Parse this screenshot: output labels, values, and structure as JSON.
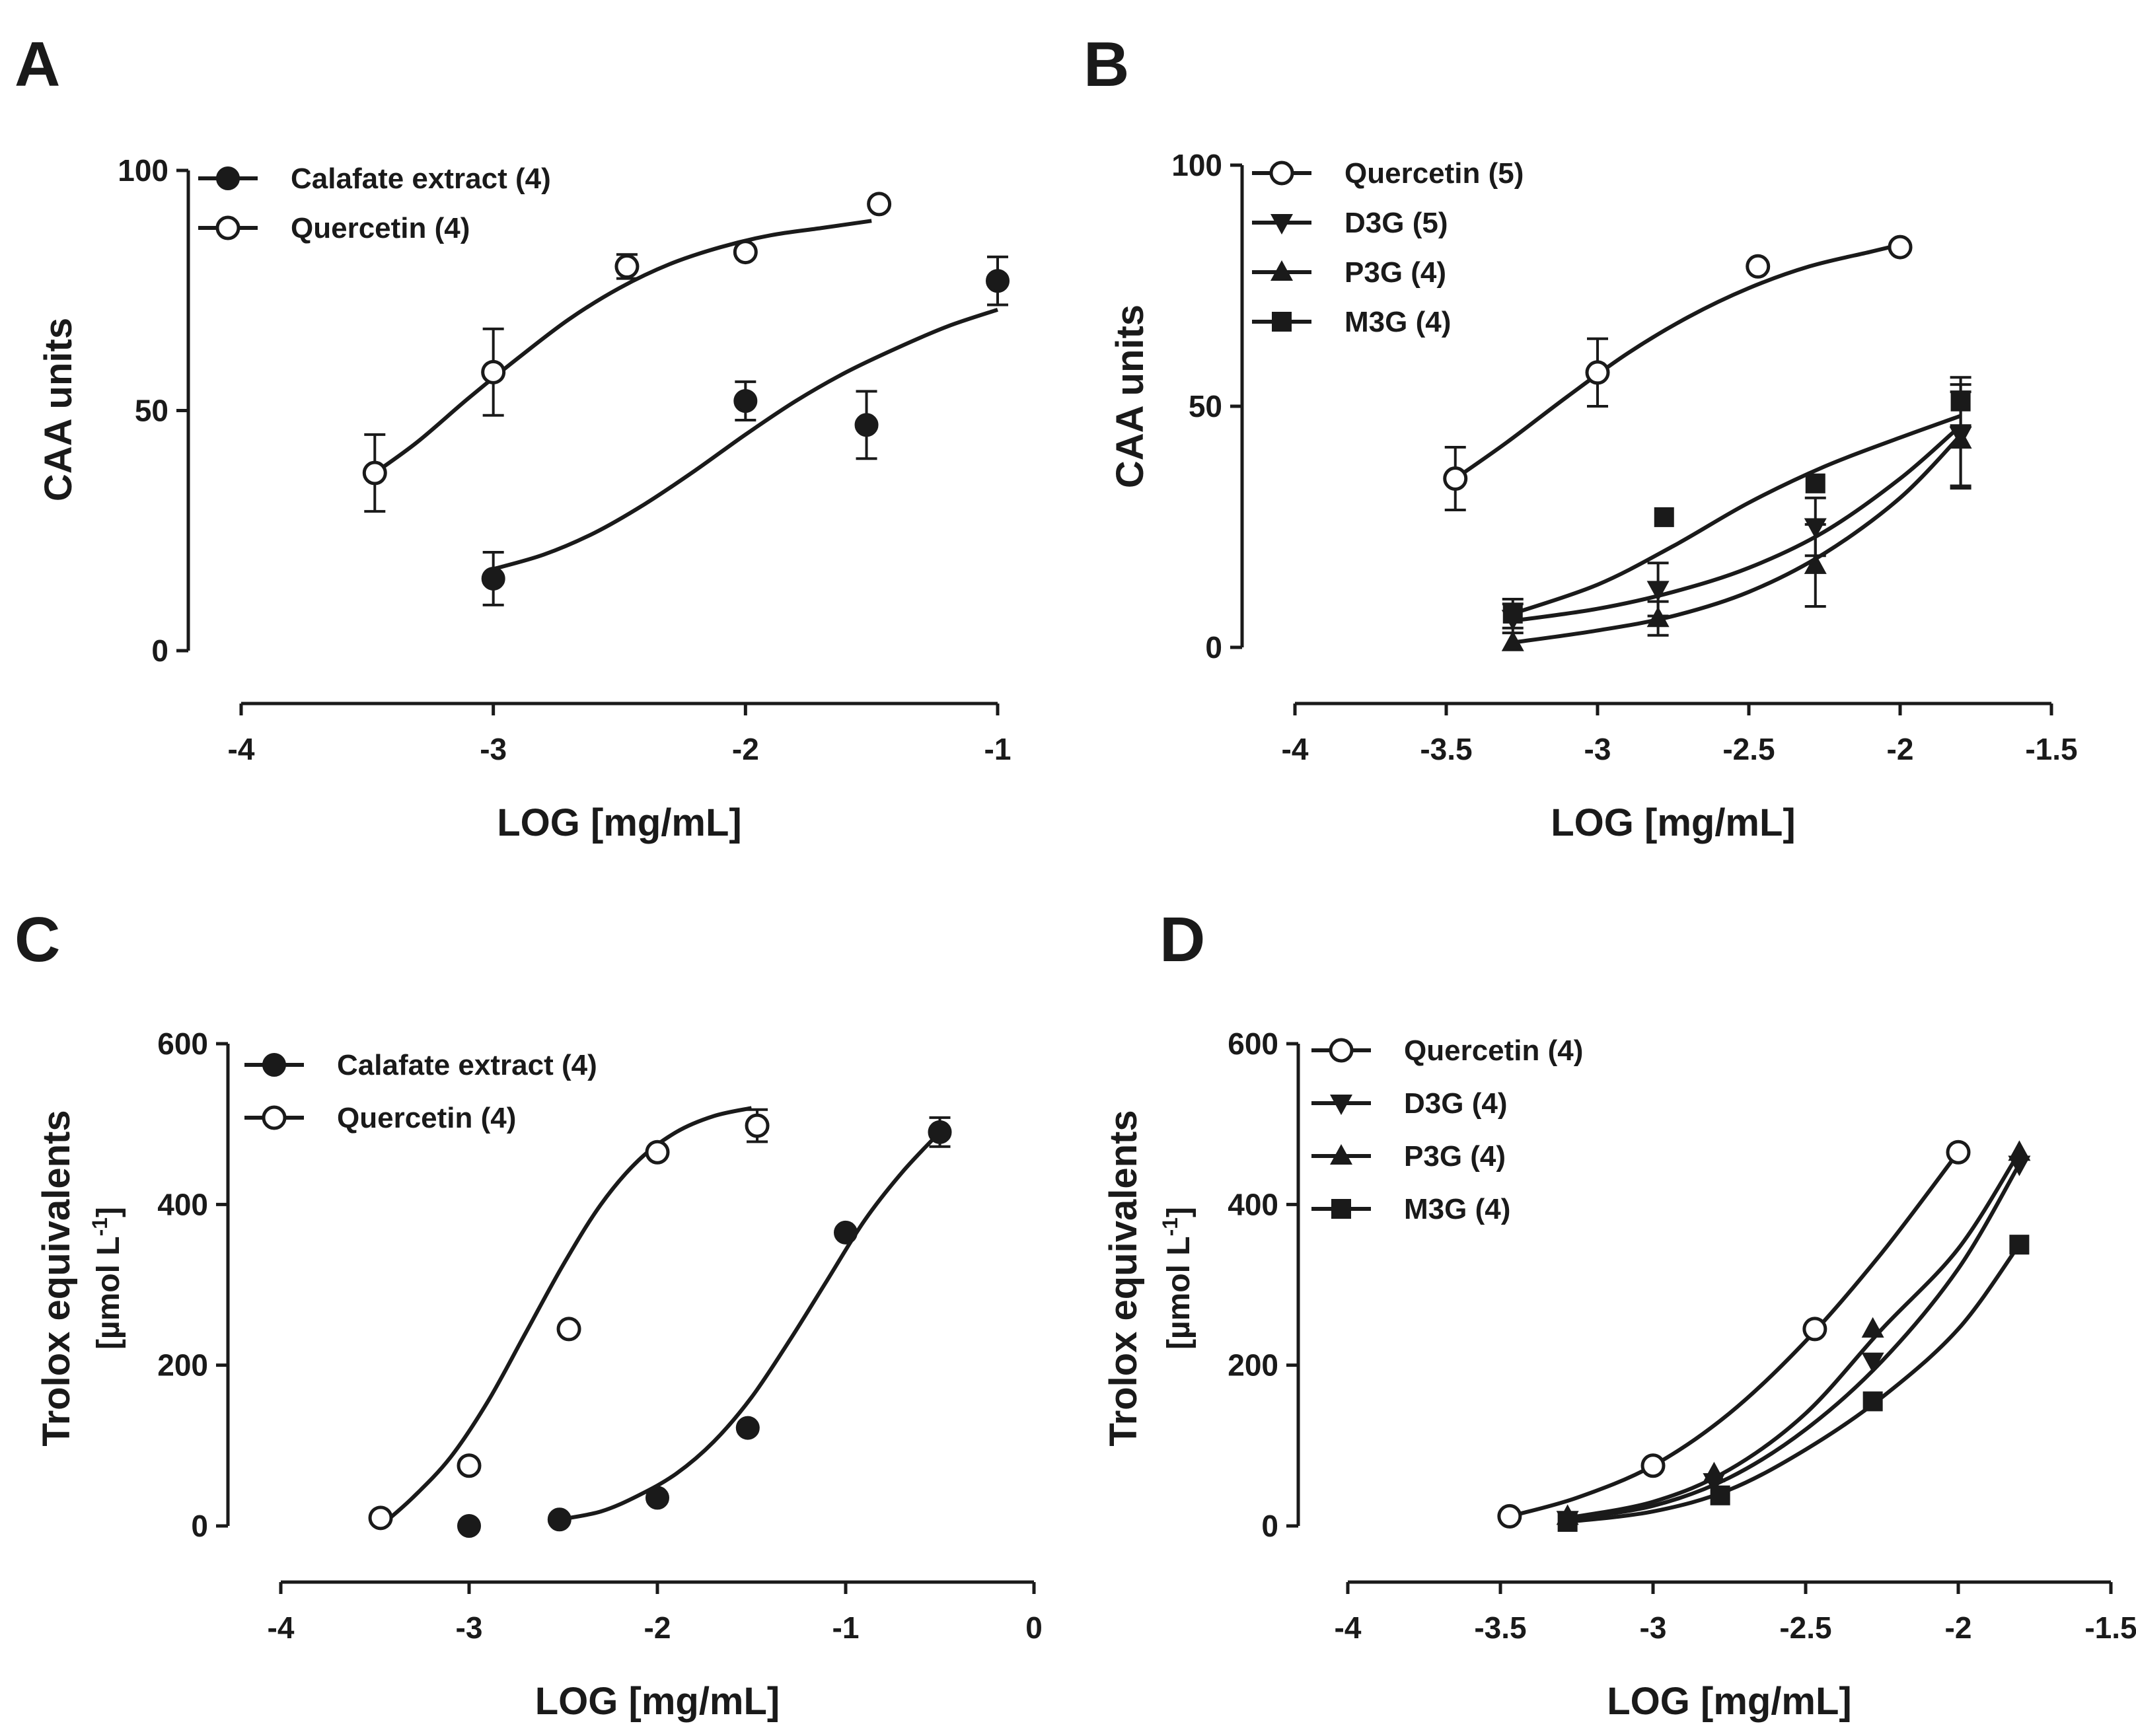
{
  "chart_data": [
    {
      "panel": "A",
      "type": "scatter",
      "xlabel": "LOG [mg/mL]",
      "ylabel": "CAA units",
      "xlim": [
        -4,
        -1
      ],
      "ylim": [
        0,
        100
      ],
      "xticks": [
        -4,
        -3,
        -2,
        -1
      ],
      "yticks": [
        0,
        50,
        100
      ],
      "x_tick_labels": [
        "-4",
        "-3",
        "-2",
        "-1"
      ],
      "y_tick_labels": [
        "0",
        "50",
        "100"
      ],
      "legend_position": "top-left",
      "grid": false,
      "series": [
        {
          "name": "Calafate extract (4)",
          "marker": "circle-filled",
          "x": [
            -3,
            -2,
            -1.52,
            -1
          ],
          "y": [
            15,
            52,
            47,
            77
          ],
          "err": [
            5.5,
            4,
            7,
            5
          ],
          "fit": {
            "x": [
              -3,
              -2.8,
              -2.6,
              -2.4,
              -2.2,
              -2,
              -1.8,
              -1.6,
              -1.4,
              -1.2,
              -1
            ],
            "y": [
              17,
              20,
              24.5,
              30.5,
              37.5,
              45,
              52,
              58,
              63,
              67.5,
              71
            ]
          }
        },
        {
          "name": "Quercetin (4)",
          "marker": "circle-open",
          "x": [
            -3.47,
            -3,
            -2.47,
            -2,
            -1.47
          ],
          "y": [
            37,
            58,
            80,
            83,
            93
          ],
          "err": [
            8,
            9,
            2.5,
            0,
            0
          ],
          "fit": {
            "x": [
              -3.47,
              -3.3,
              -3.1,
              -2.9,
              -2.7,
              -2.5,
              -2.3,
              -2.1,
              -1.9,
              -1.7,
              -1.5
            ],
            "y": [
              37,
              43.5,
              52.5,
              61,
              69,
              75.5,
              80.5,
              84,
              86.5,
              88,
              89.5
            ]
          }
        }
      ]
    },
    {
      "panel": "B",
      "type": "scatter",
      "xlabel": "LOG [mg/mL]",
      "ylabel": "CAA units",
      "xlim": [
        -4,
        -1.5
      ],
      "ylim": [
        0,
        100
      ],
      "xticks": [
        -4,
        -3.5,
        -3,
        -2.5,
        -2,
        -1.5
      ],
      "yticks": [
        0,
        50,
        100
      ],
      "x_tick_labels": [
        "-4",
        "-3.5",
        "-3",
        "-2.5",
        "-2",
        "-1.5"
      ],
      "y_tick_labels": [
        "0",
        "50",
        "100"
      ],
      "legend_position": "top-left",
      "grid": false,
      "series": [
        {
          "name": "Quercetin (5)",
          "marker": "circle-open",
          "x": [
            -3.47,
            -3,
            -2.47,
            -2
          ],
          "y": [
            35,
            57,
            79,
            83
          ],
          "err": [
            6.5,
            7,
            0,
            0
          ],
          "fit": {
            "x": [
              -3.47,
              -3.3,
              -3.1,
              -2.9,
              -2.7,
              -2.5,
              -2.3,
              -2.1,
              -2
            ],
            "y": [
              35,
              42.5,
              52,
              61,
              68.5,
              74.5,
              79,
              82,
              83.5
            ]
          }
        },
        {
          "name": "D3G (5)",
          "marker": "triangle-down",
          "x": [
            -3.28,
            -2.8,
            -2.28,
            -1.8
          ],
          "y": [
            6,
            12,
            25,
            44
          ],
          "err": [
            3,
            5.5,
            6,
            10.5
          ],
          "fit": {
            "x": [
              -3.28,
              -3,
              -2.75,
              -2.5,
              -2.25,
              -2,
              -1.8
            ],
            "y": [
              5.5,
              8,
              11.5,
              16.5,
              24,
              35,
              46
            ]
          }
        },
        {
          "name": "P3G (4)",
          "marker": "triangle-up",
          "x": [
            -3.28,
            -2.8,
            -2.28,
            -1.8
          ],
          "y": [
            1,
            6,
            17,
            43
          ],
          "err": [
            0,
            3.5,
            8.5,
            10
          ],
          "fit": {
            "x": [
              -3.28,
              -3,
              -2.75,
              -2.5,
              -2.25,
              -2,
              -1.8
            ],
            "y": [
              1,
              3.5,
              6.5,
              11.5,
              19.5,
              31,
              44
            ]
          }
        },
        {
          "name": "M3G (4)",
          "marker": "square-filled",
          "x": [
            -3.28,
            -2.78,
            -2.28,
            -1.8
          ],
          "y": [
            7,
            27,
            34,
            51
          ],
          "err": [
            3,
            0,
            0,
            5
          ],
          "fit": {
            "x": [
              -3.28,
              -3,
              -2.75,
              -2.5,
              -2.25,
              -2,
              -1.8
            ],
            "y": [
              7,
              13,
              21,
              30,
              37.5,
              43.5,
              48
            ]
          }
        }
      ]
    },
    {
      "panel": "C",
      "type": "scatter",
      "xlabel": "LOG [mg/mL]",
      "ylabel": "Trolox equivalents",
      "ylabel2": "[µmol L-1]",
      "xlim": [
        -4,
        0
      ],
      "ylim": [
        0,
        600
      ],
      "xticks": [
        -4,
        -3,
        -2,
        -1,
        0
      ],
      "yticks": [
        0,
        200,
        400,
        600
      ],
      "x_tick_labels": [
        "-4",
        "-3",
        "-2",
        "-1",
        "0"
      ],
      "y_tick_labels": [
        "0",
        "200",
        "400",
        "600"
      ],
      "legend_position": "top-left",
      "grid": false,
      "series": [
        {
          "name": "Calafate extract (4)",
          "marker": "circle-filled",
          "x": [
            -3,
            -2.52,
            -2,
            -1.52,
            -1,
            -0.5
          ],
          "y": [
            0,
            8,
            35,
            122,
            365,
            490
          ],
          "err": [
            0,
            0,
            0,
            0,
            0,
            18
          ],
          "fit": {
            "x": [
              -2.52,
              -2.3,
              -2.1,
              -1.9,
              -1.7,
              -1.5,
              -1.3,
              -1.1,
              -0.9,
              -0.7,
              -0.5
            ],
            "y": [
              8,
              18,
              38,
              65,
              105,
              160,
              230,
              305,
              380,
              440,
              490
            ]
          }
        },
        {
          "name": "Quercetin (4)",
          "marker": "circle-open",
          "x": [
            -3.47,
            -3,
            -2.47,
            -2,
            -1.47
          ],
          "y": [
            10,
            75,
            245,
            465,
            498
          ],
          "err": [
            0,
            0,
            0,
            0,
            20
          ],
          "fit": {
            "x": [
              -3.47,
              -3.3,
              -3.1,
              -2.9,
              -2.7,
              -2.5,
              -2.3,
              -2.1,
              -1.9,
              -1.7,
              -1.5
            ],
            "y": [
              0,
              35,
              85,
              155,
              240,
              325,
              400,
              455,
              490,
              510,
              520
            ]
          }
        }
      ]
    },
    {
      "panel": "D",
      "type": "scatter",
      "xlabel": "LOG [mg/mL]",
      "ylabel": "Trolox equivalents",
      "ylabel2": "[µmol L-1]",
      "xlim": [
        -4,
        -1.5
      ],
      "ylim": [
        0,
        600
      ],
      "xticks": [
        -4,
        -3.5,
        -3,
        -2.5,
        -2,
        -1.5
      ],
      "yticks": [
        0,
        200,
        400,
        600
      ],
      "x_tick_labels": [
        "-4",
        "-3.5",
        "-3",
        "-2.5",
        "-2",
        "-1.5"
      ],
      "y_tick_labels": [
        "0",
        "200",
        "400",
        "600"
      ],
      "legend_position": "top-left",
      "grid": false,
      "series": [
        {
          "name": "Quercetin (4)",
          "marker": "circle-open",
          "x": [
            -3.47,
            -3,
            -2.47,
            -2
          ],
          "y": [
            12,
            75,
            245,
            465
          ],
          "fit": {
            "x": [
              -3.47,
              -3.25,
              -3,
              -2.75,
              -2.5,
              -2.25,
              -2
            ],
            "y": [
              12,
              35,
              75,
              140,
              230,
              340,
              465
            ]
          }
        },
        {
          "name": "D3G (4)",
          "marker": "triangle-down",
          "x": [
            -3.28,
            -2.8,
            -2.28,
            -1.8
          ],
          "y": [
            8,
            55,
            205,
            450
          ],
          "fit": {
            "x": [
              -3.28,
              -3,
              -2.75,
              -2.5,
              -2.25,
              -2,
              -1.8
            ],
            "y": [
              8,
              25,
              60,
              120,
              205,
              320,
              450
            ]
          }
        },
        {
          "name": "P3G (4)",
          "marker": "triangle-up",
          "x": [
            -3.28,
            -2.8,
            -2.28,
            -1.8
          ],
          "y": [
            12,
            65,
            245,
            465
          ],
          "fit": {
            "x": [
              -3.28,
              -3,
              -2.75,
              -2.5,
              -2.25,
              -2,
              -1.8
            ],
            "y": [
              10,
              30,
              70,
              140,
              245,
              345,
              465
            ]
          }
        },
        {
          "name": "M3G (4)",
          "marker": "square-filled",
          "x": [
            -3.28,
            -2.78,
            -2.28,
            -1.8
          ],
          "y": [
            5,
            38,
            155,
            350
          ],
          "fit": {
            "x": [
              -3.28,
              -3,
              -2.75,
              -2.5,
              -2.25,
              -2,
              -1.8
            ],
            "y": [
              5,
              18,
              45,
              95,
              160,
              245,
              350
            ]
          }
        }
      ]
    }
  ]
}
